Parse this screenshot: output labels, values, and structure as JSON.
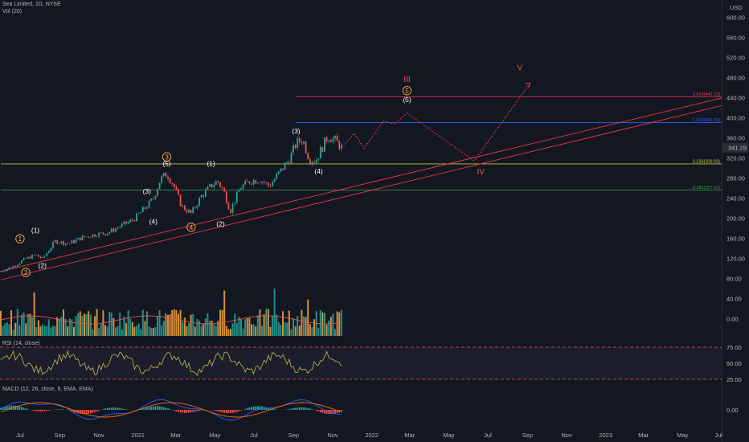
{
  "header": {
    "symbol": "Sea Limited, 1D, NYSE",
    "volume_label": "Vol (20)",
    "rsi_label": "RSI (14, close)",
    "macd_label": "MACD (12, 26, close, 9, EMA, EMA)"
  },
  "currency": "USD",
  "last_price": "341.29",
  "colors": {
    "background": "#131722",
    "candle_up": "#26a69a",
    "candle_down": "#ef5350",
    "volume_up": "#26a69a",
    "volume_down": "#f7a440",
    "trendline": "#f23645",
    "projection": "#f23645",
    "fib_2618": "#f23645",
    "fib_1618": "#2962ff",
    "fib_0236": "#c0ca33",
    "fib_0382": "#43a047",
    "rsi_line": "#c9b458",
    "macd_line": "#2962ff",
    "signal_line": "#ff6d00"
  },
  "chart_data": {
    "type": "candlestick",
    "x_ticks": [
      "Jul",
      "Sep",
      "Nov",
      "2021",
      "Mar",
      "May",
      "Jul",
      "Sep",
      "Nov",
      "2022",
      "Mar",
      "May",
      "Jul",
      "Sep",
      "Nov",
      "2023",
      "Mar",
      "May",
      "Jul"
    ],
    "price_ticks": [
      "600.00",
      "560.00",
      "520.00",
      "480.00",
      "440.00",
      "400.00",
      "360.00",
      "320.00",
      "280.00",
      "240.00",
      "200.00",
      "160.00",
      "120.00",
      "80.00",
      "40.00",
      "0.00"
    ],
    "rsi_ticks": [
      "75.00",
      "50.00",
      "25.00"
    ],
    "macd_ticks": [
      "0.00"
    ],
    "ylim": [
      0,
      610
    ],
    "fib_levels": [
      {
        "label": "2.618(442.23)",
        "value": 442.23
      },
      {
        "label": "1.618(391.32)",
        "value": 391.32
      },
      {
        "label": "0.236(308.93)",
        "value": 308.93
      },
      {
        "label": "0.382(257.02)",
        "value": 257.02
      }
    ],
    "price_path": [
      [
        "2020-06-01",
        95
      ],
      [
        "2020-06-20",
        105
      ],
      [
        "2020-07-10",
        120
      ],
      [
        "2020-07-25",
        128
      ],
      [
        "2020-08-05",
        120
      ],
      [
        "2020-08-25",
        155
      ],
      [
        "2020-09-15",
        150
      ],
      [
        "2020-10-05",
        162
      ],
      [
        "2020-10-25",
        168
      ],
      [
        "2020-11-15",
        172
      ],
      [
        "2020-12-05",
        185
      ],
      [
        "2020-12-25",
        198
      ],
      [
        "2021-01-15",
        225
      ],
      [
        "2021-01-25",
        240
      ],
      [
        "2021-02-05",
        278
      ],
      [
        "2021-02-15",
        290
      ],
      [
        "2021-02-25",
        268
      ],
      [
        "2021-03-10",
        225
      ],
      [
        "2021-03-25",
        210
      ],
      [
        "2021-04-10",
        245
      ],
      [
        "2021-04-25",
        265
      ],
      [
        "2021-05-05",
        275
      ],
      [
        "2021-05-15",
        255
      ],
      [
        "2021-05-25",
        215
      ],
      [
        "2021-06-10",
        262
      ],
      [
        "2021-06-25",
        275
      ],
      [
        "2021-07-10",
        278
      ],
      [
        "2021-07-25",
        265
      ],
      [
        "2021-08-10",
        292
      ],
      [
        "2021-08-25",
        318
      ],
      [
        "2021-09-05",
        350
      ],
      [
        "2021-09-15",
        358
      ],
      [
        "2021-09-25",
        320
      ],
      [
        "2021-10-05",
        315
      ],
      [
        "2021-10-15",
        340
      ],
      [
        "2021-10-25",
        365
      ],
      [
        "2021-11-05",
        355
      ],
      [
        "2021-11-15",
        341.29
      ]
    ],
    "projection_path": [
      [
        "2021-11-15",
        341
      ],
      [
        "2021-12-05",
        370
      ],
      [
        "2021-12-20",
        340
      ],
      [
        "2022-01-20",
        395
      ],
      [
        "2022-02-05",
        388
      ],
      [
        "2022-02-25",
        410
      ],
      [
        "2022-06-10",
        315
      ],
      [
        "2022-09-05",
        470
      ]
    ],
    "trendlines": [
      {
        "from": [
          "2020-06-01",
          95
        ],
        "to": [
          "2023-07-01",
          440
        ]
      },
      {
        "from": [
          "2020-06-01",
          78
        ],
        "to": [
          "2023-07-01",
          425
        ]
      }
    ],
    "waves": [
      {
        "label": "1",
        "style": "circle",
        "at": [
          "2020-07-01",
          155
        ]
      },
      {
        "label": "(1)",
        "style": "plain",
        "at": [
          "2020-07-25",
          172
        ]
      },
      {
        "label": "2",
        "style": "circle",
        "at": [
          "2020-07-10",
          88
        ]
      },
      {
        "label": "(2)",
        "style": "plain",
        "at": [
          "2020-08-05",
          102
        ]
      },
      {
        "label": "(3)",
        "style": "plain",
        "at": [
          "2021-01-15",
          250
        ]
      },
      {
        "label": "(4)",
        "style": "plain",
        "at": [
          "2021-01-25",
          190
        ]
      },
      {
        "label": "3",
        "style": "circle",
        "at": [
          "2021-02-15",
          318
        ]
      },
      {
        "label": "(5)",
        "style": "plain",
        "at": [
          "2021-02-15",
          305
        ]
      },
      {
        "label": "4",
        "style": "circle",
        "at": [
          "2021-03-25",
          178
        ]
      },
      {
        "label": "(1)",
        "style": "plain",
        "at": [
          "2021-04-25",
          305
        ]
      },
      {
        "label": "(2)",
        "style": "plain",
        "at": [
          "2021-05-10",
          185
        ]
      },
      {
        "label": "(3)",
        "style": "plain",
        "at": [
          "2021-09-05",
          370
        ]
      },
      {
        "label": "(4)",
        "style": "plain",
        "at": [
          "2021-10-10",
          290
        ]
      },
      {
        "label": "III",
        "style": "red",
        "at": [
          "2022-02-25",
          472
        ]
      },
      {
        "label": "5",
        "style": "circle",
        "at": [
          "2022-02-25",
          450
        ]
      },
      {
        "label": "(5)",
        "style": "plain",
        "at": [
          "2022-02-25",
          432
        ]
      },
      {
        "label": "IV",
        "style": "red",
        "at": [
          "2022-06-20",
          288
        ]
      },
      {
        "label": "V",
        "style": "red",
        "at": [
          "2022-08-20",
          495
        ]
      }
    ]
  }
}
